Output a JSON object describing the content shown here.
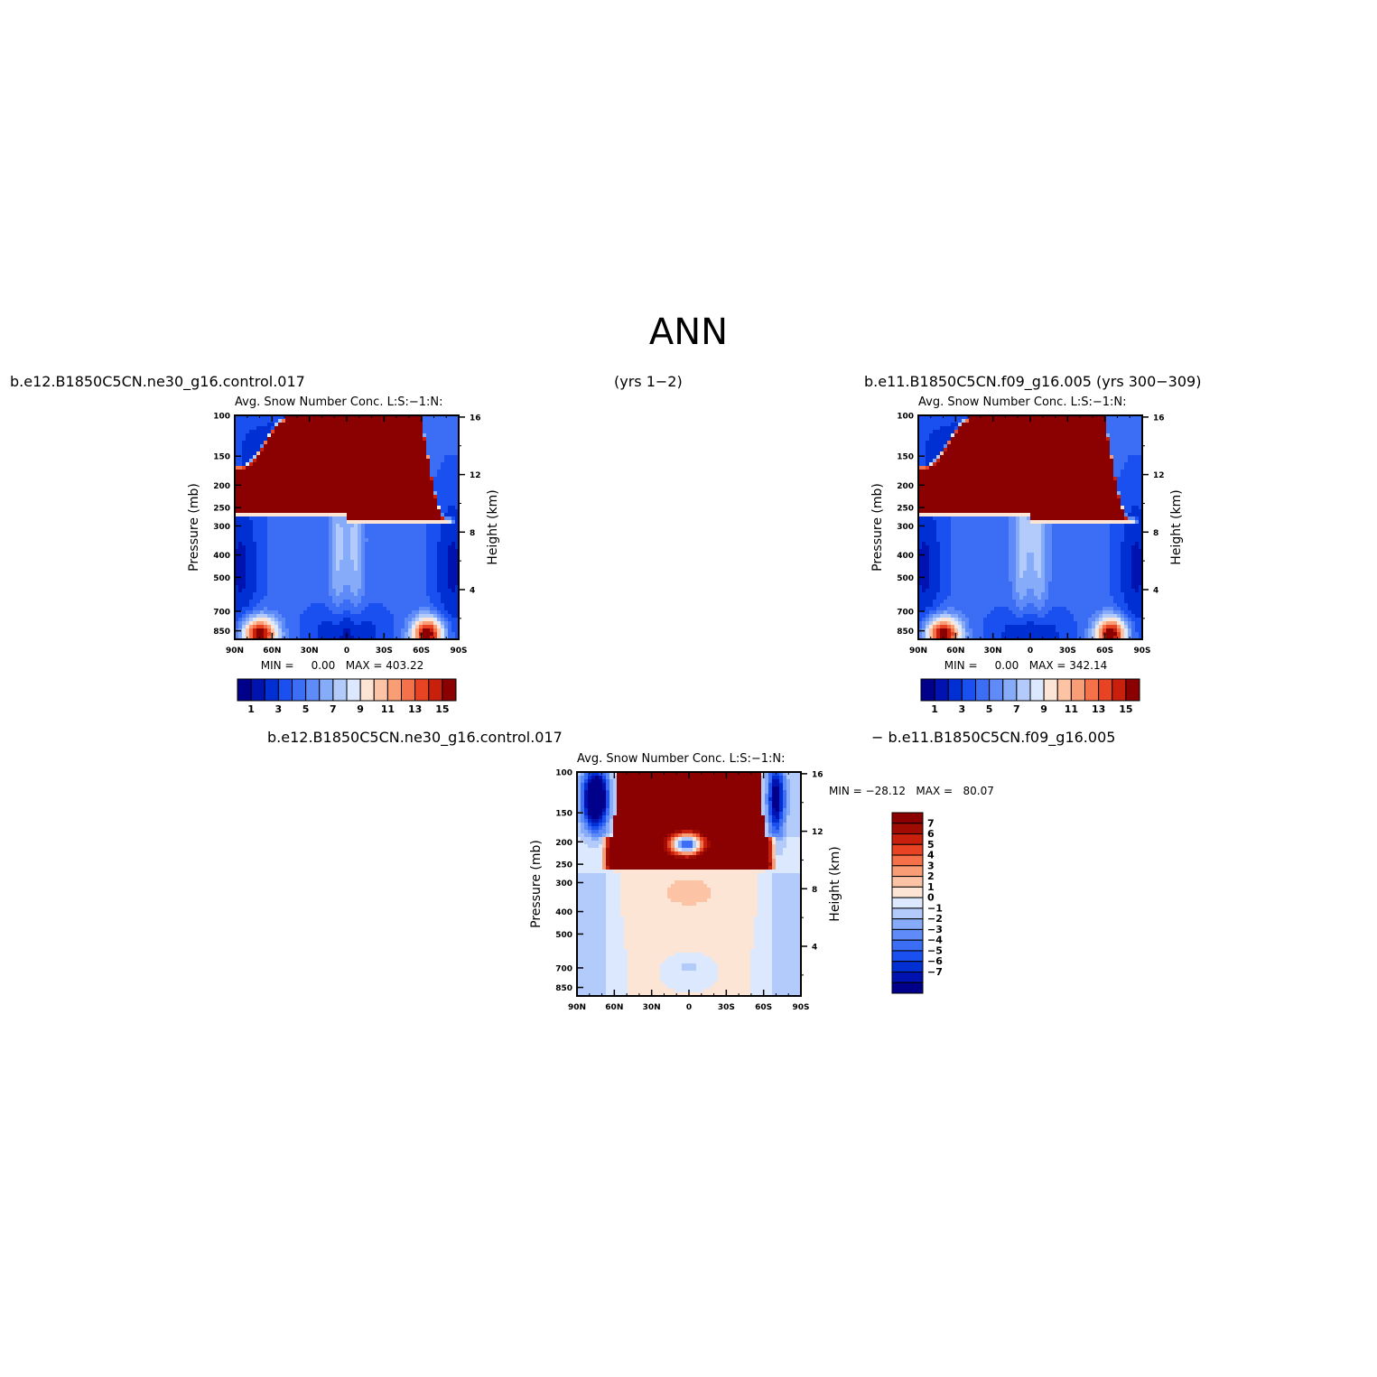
{
  "main_title": "ANN",
  "header": {
    "case1": "b.e12.B1850C5CN.ne30_g16.control.017",
    "case1_years": "(yrs 1−2)",
    "case2": "b.e11.B1850C5CN.f09_g16.005 (yrs 300−309)",
    "diff_case1": "b.e12.B1850C5CN.ne30_g16.control.017",
    "diff_case2": "−  b.e11.B1850C5CN.f09_g16.005"
  },
  "colors": {
    "full_levels": [
      "#00008b",
      "#0012b0",
      "#0030d4",
      "#1a4ff0",
      "#3b6ef5",
      "#5e8bf7",
      "#86abf9",
      "#b3cbfb",
      "#dce8fd",
      "#fde5d6",
      "#fcc3a5",
      "#f99d77",
      "#f47149",
      "#e84424",
      "#c9200e",
      "#8b0000"
    ],
    "diff_levels": [
      "#00008b",
      "#0012b0",
      "#0030d4",
      "#1a4ff0",
      "#3b6ef5",
      "#5e8bf7",
      "#86abf9",
      "#b3cbfb",
      "#dce8fd",
      "#fde5d6",
      "#fcc3a5",
      "#f99d77",
      "#f47149",
      "#e84424",
      "#c9200e",
      "#a00c02",
      "#8b0000"
    ]
  },
  "chart_data": [
    {
      "type": "heatmap",
      "title": "Avg. Snow Number Conc. L:S:−1:N:",
      "ylabel": "Pressure (mb)",
      "y2label": "Height (km)",
      "x_ticks": [
        "90N",
        "60N",
        "30N",
        "0",
        "30S",
        "60S",
        "90S"
      ],
      "x_range": [
        90,
        -90
      ],
      "y_ticks": [
        100,
        150,
        200,
        250,
        300,
        400,
        500,
        700,
        850
      ],
      "y_range": [
        100,
        925
      ],
      "y_scale": "log",
      "y2_ticks": [
        16,
        12,
        8,
        4
      ],
      "min_label": "MIN =     0.00   MAX = 403.22",
      "colorbar_labels": [
        "1",
        "3",
        "5",
        "7",
        "9",
        "11",
        "13",
        "15"
      ],
      "colorbar_orientation": "horizontal",
      "model": "a"
    },
    {
      "type": "heatmap",
      "title": "Avg. Snow Number Conc. L:S:−1:N:",
      "ylabel": "Pressure (mb)",
      "y2label": "Height (km)",
      "x_ticks": [
        "90N",
        "60N",
        "30N",
        "0",
        "30S",
        "60S",
        "90S"
      ],
      "x_range": [
        90,
        -90
      ],
      "y_ticks": [
        100,
        150,
        200,
        250,
        300,
        400,
        500,
        700,
        850
      ],
      "y_range": [
        100,
        925
      ],
      "y_scale": "log",
      "y2_ticks": [
        16,
        12,
        8,
        4
      ],
      "min_label": "MIN =     0.00   MAX = 342.14",
      "colorbar_labels": [
        "1",
        "3",
        "5",
        "7",
        "9",
        "11",
        "13",
        "15"
      ],
      "colorbar_orientation": "horizontal",
      "model": "b"
    },
    {
      "type": "heatmap",
      "title": "Avg. Snow Number Conc. L:S:−1:N:",
      "ylabel": "Pressure (mb)",
      "y2label": "Height (km)",
      "x_ticks": [
        "90N",
        "60N",
        "30N",
        "0",
        "30S",
        "60S",
        "90S"
      ],
      "x_range": [
        90,
        -90
      ],
      "y_ticks": [
        100,
        150,
        200,
        250,
        300,
        400,
        500,
        700,
        850
      ],
      "y_range": [
        100,
        925
      ],
      "y_scale": "log",
      "y2_ticks": [
        16,
        12,
        8,
        4
      ],
      "min_label": "MIN = −28.12   MAX =   80.07",
      "colorbar_labels": [
        "7",
        "6",
        "5",
        "4",
        "3",
        "2",
        "1",
        "0",
        "−1",
        "−2",
        "−3",
        "−4",
        "−5",
        "−6",
        "−7"
      ],
      "colorbar_orientation": "vertical",
      "model": "diff"
    }
  ]
}
